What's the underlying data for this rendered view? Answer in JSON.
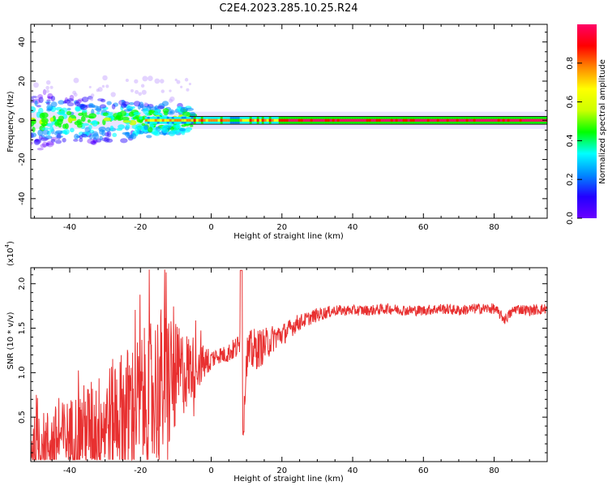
{
  "title": "C2E4.2023.285.10.25.R24",
  "chart_data": [
    {
      "type": "heatmap",
      "xlabel": "Height of straight line (km)",
      "ylabel": "Frequency (Hz)",
      "xlim": [
        -51,
        95
      ],
      "ylim": [
        -50,
        49
      ],
      "xticks": [
        -40,
        -20,
        0,
        20,
        40,
        60,
        80
      ],
      "yticks": [
        -40,
        -20,
        0,
        20,
        40
      ],
      "grid": false,
      "colorbar": {
        "label": "Normalized spectral amplitude",
        "range": [
          0,
          1
        ],
        "ticks": [
          "0.0",
          "0.2",
          "0.4",
          "0.6",
          "0.8"
        ],
        "colormap": [
          "#6a00ff",
          "#2200ff",
          "#0088ff",
          "#00ffff",
          "#00ff00",
          "#ccff00",
          "#ffff00",
          "#ff8800",
          "#ff0000",
          "#ff0066"
        ]
      },
      "band": {
        "center_hz": 0,
        "half_width_hz": 2,
        "noisy_region_km": [
          -51,
          -5
        ],
        "scatter_max_hz": 22,
        "peak_amplitude": 0.95
      }
    },
    {
      "type": "line",
      "xlabel": "Height of straight line (km)",
      "ylabel": "SNR (10 * v/v)",
      "y_multiplier": "(x10",
      "y_multiplier_exp": "4",
      "y_multiplier_close": ")",
      "xlim": [
        -51,
        95
      ],
      "ylim": [
        0,
        2.18
      ],
      "xticks": [
        -40,
        -20,
        0,
        20,
        40,
        60,
        80
      ],
      "yticks": [
        0.5,
        1.0,
        1.5,
        2.0
      ],
      "ytick_labels": [
        "0.5",
        "1.0",
        "1.5",
        "2.0"
      ],
      "color": "#e83030",
      "x": [
        -51,
        -48,
        -45,
        -42,
        -39,
        -36,
        -33,
        -30,
        -27,
        -24,
        -21,
        -18,
        -15,
        -12,
        -10,
        -8,
        -6,
        -4,
        -2,
        0,
        2,
        4,
        6,
        8,
        8.5,
        9,
        10,
        12,
        15,
        18,
        21,
        24,
        27,
        30,
        35,
        40,
        45,
        50,
        55,
        60,
        65,
        70,
        75,
        80,
        83,
        86,
        90,
        95
      ],
      "y": [
        0.15,
        0.2,
        0.22,
        0.28,
        0.3,
        0.38,
        0.4,
        0.45,
        0.55,
        0.6,
        0.65,
        0.75,
        0.85,
        0.9,
        0.95,
        1.0,
        1.05,
        1.1,
        1.1,
        1.15,
        1.2,
        1.2,
        1.25,
        1.3,
        2.15,
        0.3,
        1.2,
        1.25,
        1.3,
        1.4,
        1.45,
        1.55,
        1.6,
        1.65,
        1.7,
        1.7,
        1.7,
        1.72,
        1.7,
        1.7,
        1.72,
        1.7,
        1.72,
        1.72,
        1.6,
        1.72,
        1.7,
        1.72
      ],
      "noise_amplitude": [
        0.35,
        0.35,
        0.4,
        0.4,
        0.45,
        0.5,
        0.55,
        0.6,
        0.65,
        0.7,
        0.75,
        0.8,
        0.9,
        0.9,
        0.6,
        0.5,
        0.4,
        0.3,
        0.2,
        0.12,
        0.1,
        0.1,
        0.12,
        0.15,
        0,
        0,
        0.25,
        0.25,
        0.2,
        0.15,
        0.12,
        0.1,
        0.08,
        0.08,
        0.06,
        0.06,
        0.06,
        0.06,
        0.06,
        0.06,
        0.06,
        0.06,
        0.06,
        0.06,
        0.06,
        0.06,
        0.06,
        0.06
      ]
    }
  ]
}
